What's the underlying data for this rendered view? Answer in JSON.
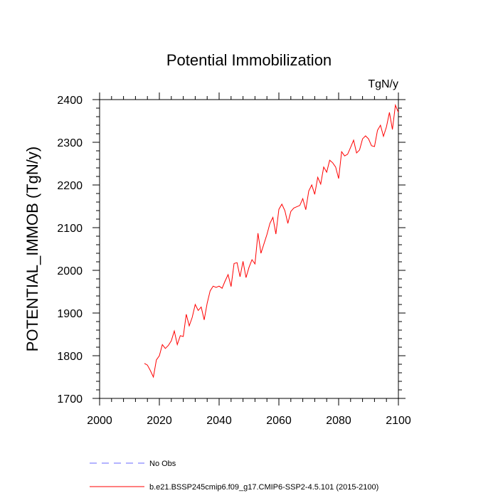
{
  "chart_data": {
    "type": "line",
    "title": "Potential Immobilization",
    "units": "TgN/y",
    "xlabel": "",
    "ylabel": "POTENTIAL_IMMOB  (TgN/y)",
    "xlim": [
      2000,
      2100
    ],
    "ylim": [
      1700,
      2400
    ],
    "xticks": [
      2000,
      2020,
      2040,
      2060,
      2080,
      2100
    ],
    "yticks": [
      1700,
      1800,
      1900,
      2000,
      2100,
      2200,
      2300,
      2400
    ],
    "grid": false,
    "legend_position": "bottom",
    "series": [
      {
        "name": "b.e21.BSSP245cmip6.f09_g17.CMIP6-SSP2-4.5.101 (2015-2100)",
        "color": "#ff0000",
        "style": "solid",
        "x": [
          2015,
          2016,
          2017,
          2018,
          2019,
          2020,
          2021,
          2022,
          2023,
          2024,
          2025,
          2026,
          2027,
          2028,
          2029,
          2030,
          2031,
          2032,
          2033,
          2034,
          2035,
          2036,
          2037,
          2038,
          2039,
          2040,
          2041,
          2042,
          2043,
          2044,
          2045,
          2046,
          2047,
          2048,
          2049,
          2050,
          2051,
          2052,
          2053,
          2054,
          2055,
          2056,
          2057,
          2058,
          2059,
          2060,
          2061,
          2062,
          2063,
          2064,
          2065,
          2066,
          2067,
          2068,
          2069,
          2070,
          2071,
          2072,
          2073,
          2074,
          2075,
          2076,
          2077,
          2078,
          2079,
          2080,
          2081,
          2082,
          2083,
          2084,
          2085,
          2086,
          2087,
          2088,
          2089,
          2090,
          2091,
          2092,
          2093,
          2094,
          2095,
          2096,
          2097,
          2098,
          2099,
          2100
        ],
        "values": [
          1782,
          1778,
          1765,
          1750,
          1790,
          1800,
          1826,
          1817,
          1824,
          1835,
          1858,
          1826,
          1847,
          1845,
          1897,
          1870,
          1890,
          1920,
          1906,
          1914,
          1884,
          1923,
          1952,
          1963,
          1960,
          1963,
          1958,
          1975,
          1990,
          1962,
          2016,
          2018,
          1985,
          2021,
          1983,
          2007,
          2025,
          2015,
          2087,
          2040,
          2062,
          2084,
          2110,
          2124,
          2085,
          2143,
          2155,
          2140,
          2110,
          2138,
          2146,
          2149,
          2152,
          2168,
          2142,
          2186,
          2200,
          2178,
          2218,
          2202,
          2242,
          2230,
          2258,
          2252,
          2242,
          2215,
          2278,
          2268,
          2272,
          2288,
          2305,
          2275,
          2282,
          2308,
          2315,
          2308,
          2292,
          2290,
          2328,
          2340,
          2314,
          2336,
          2370,
          2330,
          2387,
          2370
        ]
      }
    ],
    "legend": [
      {
        "label": "No Obs",
        "color": "#6a6aff",
        "style": "dashed"
      },
      {
        "label": "b.e21.BSSP245cmip6.f09_g17.CMIP6-SSP2-4.5.101 (2015-2100)",
        "color": "#ff0000",
        "style": "solid"
      }
    ]
  }
}
